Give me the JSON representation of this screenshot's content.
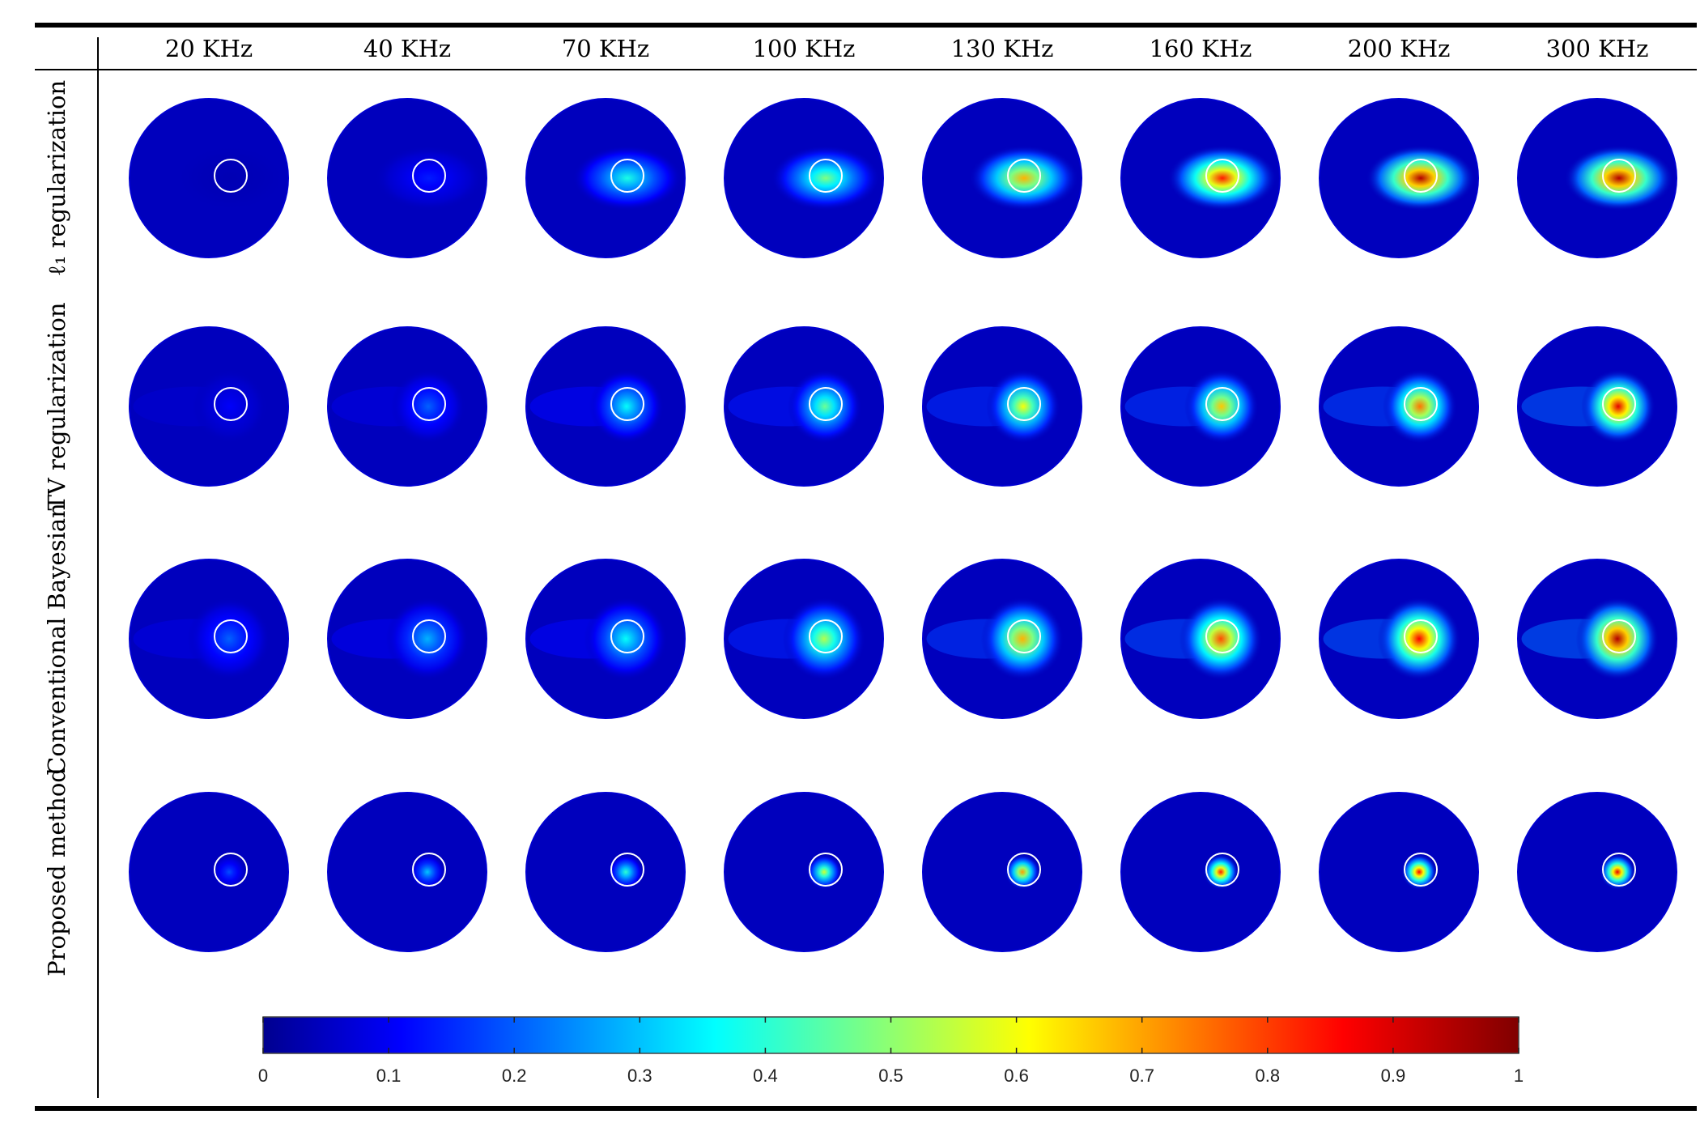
{
  "figure": {
    "column_headers": [
      "20 KHz",
      "40 KHz",
      "70 KHz",
      "100 KHz",
      "130 KHz",
      "160 KHz",
      "200 KHz",
      "300 KHz"
    ],
    "row_labels": [
      "ℓ₁ regularization",
      "TV regularization",
      "Conventional Bayesian",
      "Proposed method"
    ],
    "colorbar": {
      "min": 0,
      "max": 1,
      "tick_labels": [
        "0",
        "0.1",
        "0.2",
        "0.3",
        "0.4",
        "0.5",
        "0.6",
        "0.7",
        "0.8",
        "0.9",
        "1"
      ],
      "colormap": "jet"
    },
    "panel_peak_levels": [
      [
        0.05,
        0.15,
        0.4,
        0.5,
        0.7,
        0.85,
        0.95,
        0.95
      ],
      [
        0.12,
        0.22,
        0.38,
        0.48,
        0.62,
        0.68,
        0.76,
        0.9
      ],
      [
        0.22,
        0.3,
        0.38,
        0.55,
        0.7,
        0.8,
        0.88,
        0.95
      ],
      [
        0.2,
        0.32,
        0.42,
        0.58,
        0.72,
        0.85,
        0.88,
        0.9
      ]
    ],
    "colors": {
      "low": "#00008f",
      "high": "#800000",
      "marker_ring": "#ffffff",
      "rule_line": "#000000"
    }
  }
}
